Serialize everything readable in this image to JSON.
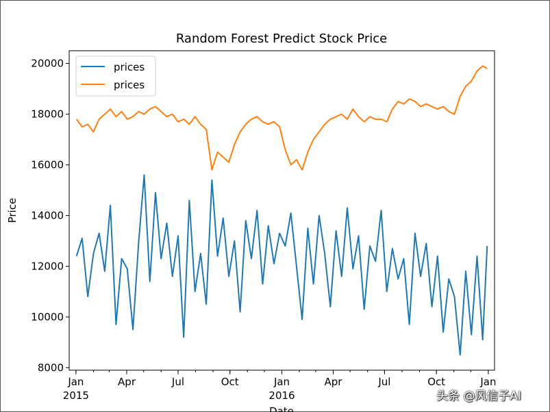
{
  "chart_data": {
    "type": "line",
    "title": "Random Forest Predict Stock Price",
    "xlabel": "Date",
    "ylabel": "Price",
    "ylim": [
      7900,
      20500
    ],
    "xlim": [
      "2014-12-20",
      "2017-01-12"
    ],
    "x_ticks": [
      {
        "date": "2015-01-01",
        "label": "Jan",
        "sublabel": "2015"
      },
      {
        "date": "2015-04-01",
        "label": "Apr",
        "sublabel": ""
      },
      {
        "date": "2015-07-01",
        "label": "Jul",
        "sublabel": ""
      },
      {
        "date": "2015-10-01",
        "label": "Oct",
        "sublabel": ""
      },
      {
        "date": "2016-01-01",
        "label": "Jan",
        "sublabel": "2016"
      },
      {
        "date": "2016-04-01",
        "label": "Apr",
        "sublabel": ""
      },
      {
        "date": "2016-07-01",
        "label": "Jul",
        "sublabel": ""
      },
      {
        "date": "2016-10-01",
        "label": "Oct",
        "sublabel": ""
      },
      {
        "date": "2017-01-01",
        "label": "Jan",
        "sublabel": ""
      }
    ],
    "y_ticks": [
      8000,
      10000,
      12000,
      14000,
      16000,
      18000,
      20000
    ],
    "legend_position": "top-left",
    "series": [
      {
        "name": "prices",
        "color": "#1f77b4",
        "x": [
          "2015-01-02",
          "2015-01-12",
          "2015-01-22",
          "2015-02-01",
          "2015-02-11",
          "2015-02-21",
          "2015-03-03",
          "2015-03-13",
          "2015-03-23",
          "2015-04-02",
          "2015-04-12",
          "2015-04-22",
          "2015-05-02",
          "2015-05-12",
          "2015-05-22",
          "2015-06-01",
          "2015-06-11",
          "2015-06-21",
          "2015-07-01",
          "2015-07-11",
          "2015-07-21",
          "2015-07-31",
          "2015-08-10",
          "2015-08-20",
          "2015-08-30",
          "2015-09-09",
          "2015-09-19",
          "2015-09-29",
          "2015-10-09",
          "2015-10-19",
          "2015-10-29",
          "2015-11-08",
          "2015-11-18",
          "2015-11-28",
          "2015-12-08",
          "2015-12-18",
          "2015-12-28",
          "2016-01-07",
          "2016-01-17",
          "2016-01-27",
          "2016-02-06",
          "2016-02-16",
          "2016-02-26",
          "2016-03-07",
          "2016-03-17",
          "2016-03-27",
          "2016-04-06",
          "2016-04-16",
          "2016-04-26",
          "2016-05-06",
          "2016-05-16",
          "2016-05-26",
          "2016-06-05",
          "2016-06-15",
          "2016-06-25",
          "2016-07-05",
          "2016-07-15",
          "2016-07-25",
          "2016-08-04",
          "2016-08-14",
          "2016-08-24",
          "2016-09-03",
          "2016-09-13",
          "2016-09-23",
          "2016-10-03",
          "2016-10-13",
          "2016-10-23",
          "2016-11-02",
          "2016-11-12",
          "2016-11-22",
          "2016-12-02",
          "2016-12-12",
          "2016-12-22",
          "2016-12-30"
        ],
        "values": [
          12400,
          13100,
          10800,
          12500,
          13300,
          11800,
          14400,
          9700,
          12300,
          11900,
          9500,
          12900,
          15600,
          11400,
          14900,
          12300,
          13700,
          11600,
          13200,
          9200,
          14600,
          11000,
          12500,
          10500,
          15400,
          12400,
          13900,
          11600,
          13000,
          10200,
          13800,
          12300,
          14200,
          11300,
          13600,
          12100,
          13300,
          12800,
          14100,
          12000,
          9900,
          13500,
          11300,
          14000,
          12500,
          10400,
          13400,
          11600,
          14300,
          11900,
          13200,
          10300,
          12800,
          12200,
          14200,
          11000,
          12700,
          11500,
          12300,
          9700,
          13300,
          11600,
          12900,
          10400,
          12400,
          9400,
          11500,
          10800,
          8500,
          11800,
          9300,
          12400,
          9100,
          12800
        ]
      },
      {
        "name": "prices",
        "color": "#ff7f0e",
        "x": [
          "2015-01-02",
          "2015-01-12",
          "2015-01-22",
          "2015-02-01",
          "2015-02-11",
          "2015-02-21",
          "2015-03-03",
          "2015-03-13",
          "2015-03-23",
          "2015-04-02",
          "2015-04-12",
          "2015-04-22",
          "2015-05-02",
          "2015-05-12",
          "2015-05-22",
          "2015-06-01",
          "2015-06-11",
          "2015-06-21",
          "2015-07-01",
          "2015-07-11",
          "2015-07-21",
          "2015-07-31",
          "2015-08-10",
          "2015-08-20",
          "2015-08-30",
          "2015-09-09",
          "2015-09-19",
          "2015-09-29",
          "2015-10-09",
          "2015-10-19",
          "2015-10-29",
          "2015-11-08",
          "2015-11-18",
          "2015-11-28",
          "2015-12-08",
          "2015-12-18",
          "2015-12-28",
          "2016-01-07",
          "2016-01-17",
          "2016-01-27",
          "2016-02-06",
          "2016-02-16",
          "2016-02-26",
          "2016-03-07",
          "2016-03-17",
          "2016-03-27",
          "2016-04-06",
          "2016-04-16",
          "2016-04-26",
          "2016-05-06",
          "2016-05-16",
          "2016-05-26",
          "2016-06-05",
          "2016-06-15",
          "2016-06-25",
          "2016-07-05",
          "2016-07-15",
          "2016-07-25",
          "2016-08-04",
          "2016-08-14",
          "2016-08-24",
          "2016-09-03",
          "2016-09-13",
          "2016-09-23",
          "2016-10-03",
          "2016-10-13",
          "2016-10-23",
          "2016-11-02",
          "2016-11-12",
          "2016-11-22",
          "2016-12-02",
          "2016-12-12",
          "2016-12-22",
          "2016-12-30"
        ],
        "values": [
          17800,
          17500,
          17600,
          17300,
          17800,
          18000,
          18200,
          17900,
          18100,
          17800,
          17900,
          18100,
          18000,
          18200,
          18300,
          18100,
          17900,
          18000,
          17700,
          17800,
          17600,
          17900,
          17600,
          17400,
          15800,
          16500,
          16300,
          16100,
          16800,
          17300,
          17600,
          17800,
          17900,
          17700,
          17600,
          17700,
          17500,
          16600,
          16000,
          16200,
          15800,
          16500,
          17000,
          17300,
          17600,
          17800,
          17900,
          18000,
          17800,
          18200,
          17900,
          17700,
          17900,
          17800,
          17800,
          17700,
          18200,
          18500,
          18400,
          18600,
          18500,
          18300,
          18400,
          18300,
          18200,
          18300,
          18100,
          18000,
          18700,
          19100,
          19300,
          19700,
          19900,
          19800
        ]
      }
    ]
  },
  "watermark": "头条 @风信子AI"
}
